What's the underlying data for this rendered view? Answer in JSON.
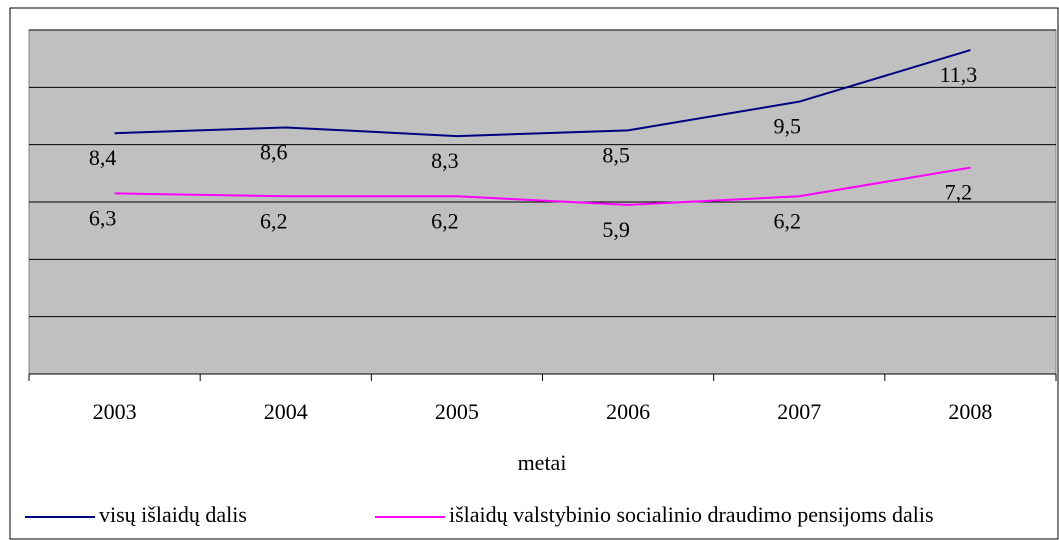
{
  "chart_data": {
    "type": "line",
    "x_label": "metai",
    "categories": [
      "2003",
      "2004",
      "2005",
      "2006",
      "2007",
      "2008"
    ],
    "series": [
      {
        "name": "visų išlaidų dalis",
        "color": "#000080",
        "values": [
          8.4,
          8.6,
          8.3,
          8.5,
          9.5,
          11.3
        ],
        "value_labels": [
          "8,4",
          "8,6",
          "8,3",
          "8,5",
          "9,5",
          "11,3"
        ]
      },
      {
        "name": "išlaidų valstybinio socialinio draudimo pensijoms dalis",
        "color": "#ff00ff",
        "values": [
          6.3,
          6.2,
          6.2,
          5.9,
          6.2,
          7.2
        ],
        "value_labels": [
          "6,3",
          "6,2",
          "6,2",
          "5,9",
          "6,2",
          "7,2"
        ]
      }
    ],
    "ylim": [
      0,
      12
    ],
    "yticks": [
      0,
      2,
      4,
      6,
      8,
      10,
      12
    ],
    "grid": true,
    "legend": "bottom"
  }
}
